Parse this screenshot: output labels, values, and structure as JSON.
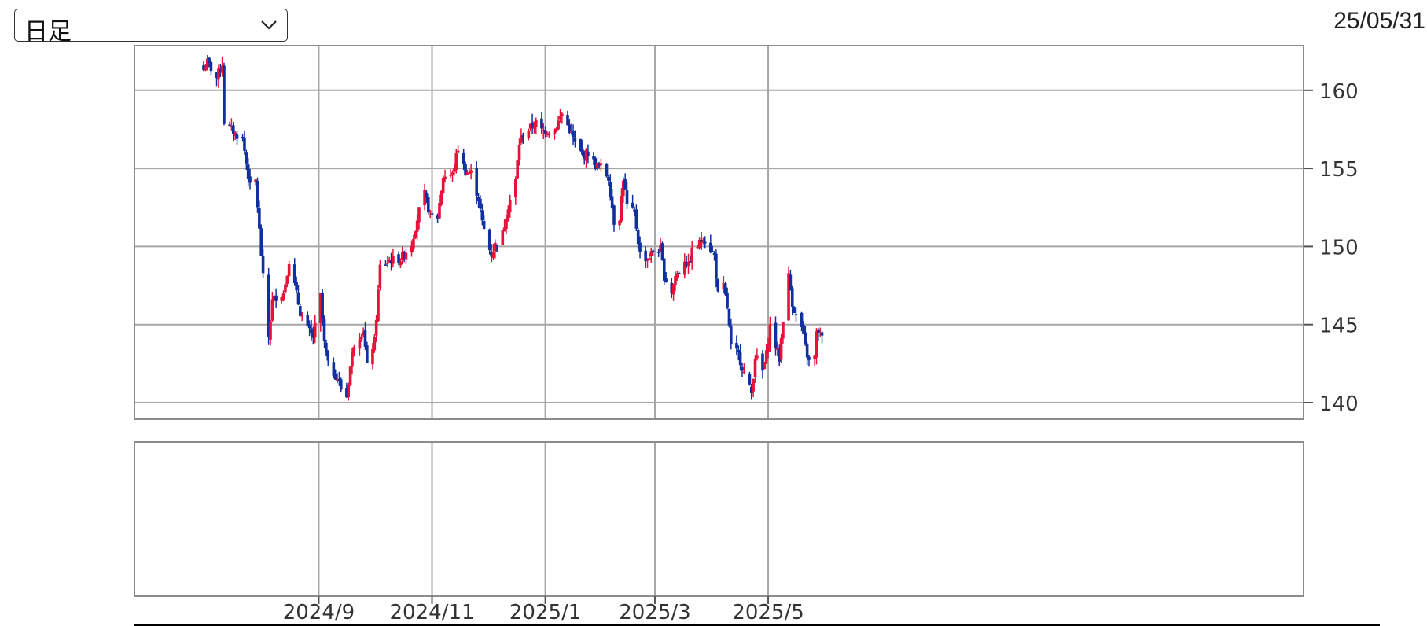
{
  "controls": {
    "period_select": {
      "selected": "日足"
    },
    "date_label": "25/05/31"
  },
  "colors": {
    "up": "#e8113a",
    "down": "#1030a0",
    "grid": "#a6a6a6",
    "frame": "#8c8c8c"
  },
  "chart_data": {
    "type": "candlestick",
    "title": "",
    "xlabel": "",
    "ylabel": "",
    "date_range": [
      "2024-07-01",
      "2025-05-30"
    ],
    "x_ticks": [
      {
        "label": "2024/9",
        "date": "2024-09-01"
      },
      {
        "label": "2024/11",
        "date": "2024-11-01"
      },
      {
        "label": "2025/1",
        "date": "2025-01-01"
      },
      {
        "label": "2025/3",
        "date": "2025-03-01"
      },
      {
        "label": "2025/5",
        "date": "2025-05-01"
      }
    ],
    "y_ticks": [
      140,
      145,
      150,
      155,
      160
    ],
    "ylim": [
      139,
      162.8
    ],
    "grid": true,
    "lower_panel": {
      "series": []
    },
    "close_path": [
      [
        "2024-07-01",
        161.3
      ],
      [
        "2024-07-03",
        161.8
      ],
      [
        "2024-07-08",
        160.8
      ],
      [
        "2024-07-11",
        161.7
      ],
      [
        "2024-07-12",
        158.0
      ],
      [
        "2024-07-18",
        157.2
      ],
      [
        "2024-07-22",
        156.9
      ],
      [
        "2024-07-26",
        153.8
      ],
      [
        "2024-07-29",
        154.2
      ],
      [
        "2024-07-31",
        151.0
      ],
      [
        "2024-08-02",
        148.0
      ],
      [
        "2024-08-05",
        144.2
      ],
      [
        "2024-08-07",
        146.5
      ],
      [
        "2024-08-09",
        146.8
      ],
      [
        "2024-08-13",
        147.0
      ],
      [
        "2024-08-16",
        149.1
      ],
      [
        "2024-08-19",
        147.5
      ],
      [
        "2024-08-22",
        145.8
      ],
      [
        "2024-08-26",
        144.7
      ],
      [
        "2024-08-29",
        144.2
      ],
      [
        "2024-09-02",
        146.8
      ],
      [
        "2024-09-04",
        143.8
      ],
      [
        "2024-09-06",
        142.4
      ],
      [
        "2024-09-11",
        141.6
      ],
      [
        "2024-09-13",
        140.9
      ],
      [
        "2024-09-16",
        140.4
      ],
      [
        "2024-09-18",
        142.3
      ],
      [
        "2024-09-20",
        143.8
      ],
      [
        "2024-09-25",
        144.7
      ],
      [
        "2024-09-27",
        142.3
      ],
      [
        "2024-09-30",
        143.6
      ],
      [
        "2024-10-01",
        143.9
      ],
      [
        "2024-10-04",
        148.7
      ],
      [
        "2024-10-09",
        149.1
      ],
      [
        "2024-10-15",
        149.2
      ],
      [
        "2024-10-21",
        150.2
      ],
      [
        "2024-10-25",
        152.3
      ],
      [
        "2024-10-28",
        153.3
      ],
      [
        "2024-10-31",
        152.0
      ],
      [
        "2024-11-04",
        151.9
      ],
      [
        "2024-11-07",
        154.5
      ],
      [
        "2024-11-12",
        154.6
      ],
      [
        "2024-11-15",
        156.3
      ],
      [
        "2024-11-19",
        154.8
      ],
      [
        "2024-11-22",
        154.7
      ],
      [
        "2024-11-26",
        153.1
      ],
      [
        "2024-11-28",
        151.5
      ],
      [
        "2024-12-02",
        149.8
      ],
      [
        "2024-12-03",
        149.5
      ],
      [
        "2024-12-05",
        150.1
      ],
      [
        "2024-12-09",
        150.8
      ],
      [
        "2024-12-12",
        152.6
      ],
      [
        "2024-12-16",
        154.2
      ],
      [
        "2024-12-18",
        156.6
      ],
      [
        "2024-12-20",
        157.2
      ],
      [
        "2024-12-24",
        157.6
      ],
      [
        "2024-12-27",
        157.9
      ],
      [
        "2024-12-30",
        157.4
      ],
      [
        "2025-01-06",
        157.5
      ],
      [
        "2025-01-10",
        158.5
      ],
      [
        "2025-01-14",
        157.5
      ],
      [
        "2025-01-17",
        156.6
      ],
      [
        "2025-01-21",
        155.8
      ],
      [
        "2025-01-24",
        156.0
      ],
      [
        "2025-01-28",
        155.2
      ],
      [
        "2025-01-31",
        155.1
      ],
      [
        "2025-02-04",
        154.4
      ],
      [
        "2025-02-07",
        151.6
      ],
      [
        "2025-02-10",
        151.9
      ],
      [
        "2025-02-12",
        154.4
      ],
      [
        "2025-02-14",
        152.6
      ],
      [
        "2025-02-18",
        152.1
      ],
      [
        "2025-02-21",
        149.5
      ],
      [
        "2025-02-25",
        149.2
      ],
      [
        "2025-02-28",
        149.7
      ],
      [
        "2025-03-04",
        149.8
      ],
      [
        "2025-03-06",
        148.1
      ],
      [
        "2025-03-10",
        147.1
      ],
      [
        "2025-03-12",
        148.1
      ],
      [
        "2025-03-14",
        148.4
      ],
      [
        "2025-03-17",
        149.2
      ],
      [
        "2025-03-19",
        148.7
      ],
      [
        "2025-03-21",
        149.7
      ],
      [
        "2025-03-25",
        150.2
      ],
      [
        "2025-03-27",
        150.6
      ],
      [
        "2025-03-31",
        149.8
      ],
      [
        "2025-04-02",
        149.4
      ],
      [
        "2025-04-04",
        146.9
      ],
      [
        "2025-04-07",
        147.4
      ],
      [
        "2025-04-09",
        146.1
      ],
      [
        "2025-04-11",
        143.5
      ],
      [
        "2025-04-15",
        143.1
      ],
      [
        "2025-04-17",
        142.3
      ],
      [
        "2025-04-18",
        141.9
      ],
      [
        "2025-04-22",
        140.6
      ],
      [
        "2025-04-24",
        143.0
      ],
      [
        "2025-04-28",
        142.0
      ],
      [
        "2025-04-30",
        143.1
      ],
      [
        "2025-05-02",
        144.9
      ],
      [
        "2025-05-07",
        142.8
      ],
      [
        "2025-05-09",
        145.4
      ],
      [
        "2025-05-12",
        148.1
      ],
      [
        "2025-05-14",
        146.4
      ],
      [
        "2025-05-16",
        145.5
      ],
      [
        "2025-05-19",
        144.8
      ],
      [
        "2025-05-21",
        143.5
      ],
      [
        "2025-05-23",
        142.6
      ],
      [
        "2025-05-26",
        142.9
      ],
      [
        "2025-05-27",
        144.4
      ],
      [
        "2025-05-28",
        144.6
      ],
      [
        "2025-05-30",
        144.1
      ]
    ]
  }
}
